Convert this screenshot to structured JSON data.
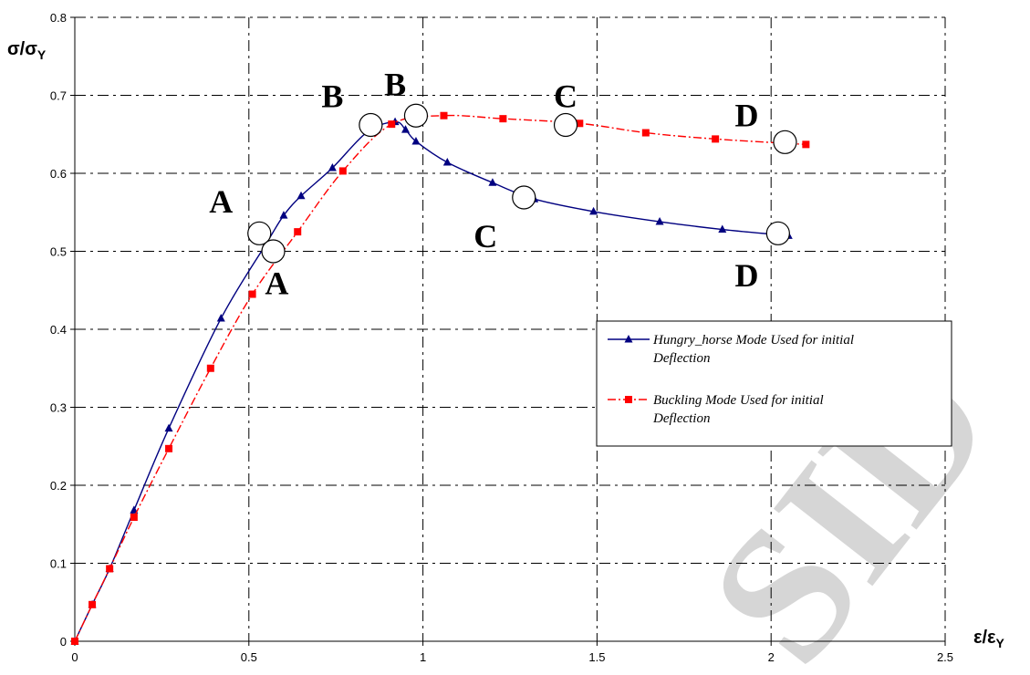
{
  "chart_data": {
    "type": "line",
    "title": "",
    "xlabel": "ε/ε",
    "xlabel_sub": "Y",
    "ylabel": "σ/σ",
    "ylabel_sub": "Y",
    "xlim": [
      0,
      2.5
    ],
    "ylim": [
      0,
      0.8
    ],
    "xticks": [
      0,
      0.5,
      1,
      1.5,
      2,
      2.5
    ],
    "xtick_labels": [
      "0",
      "0.5",
      "1",
      "1.5",
      "2",
      "2.5"
    ],
    "yticks": [
      0,
      0.1,
      0.2,
      0.3,
      0.4,
      0.5,
      0.6,
      0.7,
      0.8
    ],
    "ytick_labels": [
      "0",
      "0.1",
      "0.2",
      "0.3",
      "0.4",
      "0.5",
      "0.6",
      "0.7",
      "0.8"
    ],
    "grid": true,
    "legend_position": "right",
    "series": [
      {
        "name": "Hungry_horse Mode Used for initial Deflection",
        "legend_lines": [
          "Hungry_horse Mode Used for initial",
          "Deflection"
        ],
        "color": "#000080",
        "marker": "triangle",
        "line_style": "solid",
        "x": [
          0,
          0.05,
          0.1,
          0.17,
          0.27,
          0.42,
          0.55,
          0.6,
          0.65,
          0.74,
          0.84,
          0.92,
          0.95,
          0.98,
          1.07,
          1.2,
          1.32,
          1.49,
          1.68,
          1.86,
          2.05
        ],
        "y": [
          0,
          0.047,
          0.093,
          0.168,
          0.273,
          0.414,
          0.51,
          0.546,
          0.571,
          0.607,
          0.653,
          0.666,
          0.656,
          0.641,
          0.614,
          0.588,
          0.567,
          0.551,
          0.538,
          0.528,
          0.52
        ]
      },
      {
        "name": "Buckling Mode Used for initial Deflection",
        "legend_lines": [
          "Buckling Mode Used for initial",
          "Deflection"
        ],
        "color": "#ff0000",
        "marker": "square",
        "line_style": "dashdot",
        "x": [
          0,
          0.05,
          0.1,
          0.17,
          0.27,
          0.39,
          0.51,
          0.64,
          0.77,
          0.91,
          1.06,
          1.23,
          1.45,
          1.64,
          1.84,
          2.1
        ],
        "y": [
          0,
          0.047,
          0.093,
          0.159,
          0.247,
          0.35,
          0.445,
          0.525,
          0.603,
          0.663,
          0.674,
          0.67,
          0.664,
          0.652,
          0.644,
          0.637
        ]
      }
    ],
    "annotations": [
      {
        "label": "A",
        "x": 0.42,
        "y": 0.55
      },
      {
        "label": "A",
        "x": 0.58,
        "y": 0.445
      },
      {
        "label": "B",
        "x": 0.74,
        "y": 0.685
      },
      {
        "label": "B",
        "x": 0.92,
        "y": 0.7
      },
      {
        "label": "C",
        "x": 1.41,
        "y": 0.685
      },
      {
        "label": "C",
        "x": 1.18,
        "y": 0.505
      },
      {
        "label": "D",
        "x": 1.93,
        "y": 0.66
      },
      {
        "label": "D",
        "x": 1.93,
        "y": 0.455
      }
    ],
    "circles": [
      {
        "x": 0.53,
        "y": 0.523
      },
      {
        "x": 0.57,
        "y": 0.5
      },
      {
        "x": 0.85,
        "y": 0.662
      },
      {
        "x": 0.98,
        "y": 0.674
      },
      {
        "x": 1.29,
        "y": 0.569
      },
      {
        "x": 1.41,
        "y": 0.662
      },
      {
        "x": 2.04,
        "y": 0.64
      },
      {
        "x": 2.02,
        "y": 0.523
      }
    ]
  },
  "watermark": "SID"
}
